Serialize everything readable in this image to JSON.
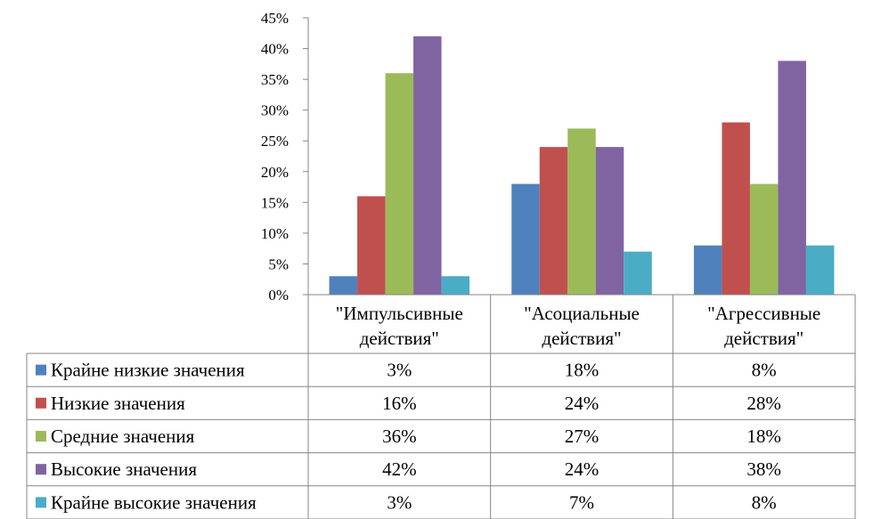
{
  "chart_data": {
    "type": "bar",
    "categories": [
      "\"Импульсивные действия\"",
      "\"Асоциальные действия\"",
      "\"Агрессивные действия\""
    ],
    "category_lines": [
      [
        "\"Импульсивные",
        "действия\""
      ],
      [
        "\"Асоциальные",
        "действия\""
      ],
      [
        "\"Агрессивные",
        "действия\""
      ]
    ],
    "series": [
      {
        "name": "Крайне низкие значения",
        "color": "#4F81BD",
        "values": [
          3,
          18,
          8
        ]
      },
      {
        "name": "Низкие значения",
        "color": "#C0504D",
        "values": [
          16,
          24,
          28
        ]
      },
      {
        "name": "Средние значения",
        "color": "#9BBB59",
        "values": [
          36,
          27,
          18
        ]
      },
      {
        "name": "Высокие значения",
        "color": "#8064A2",
        "values": [
          42,
          24,
          38
        ]
      },
      {
        "name": "Крайне высокие значения",
        "color": "#4BACC6",
        "values": [
          3,
          7,
          8
        ]
      }
    ],
    "table_values": [
      [
        "3%",
        "18%",
        "8%"
      ],
      [
        "16%",
        "24%",
        "28%"
      ],
      [
        "36%",
        "27%",
        "18%"
      ],
      [
        "42%",
        "24%",
        "38%"
      ],
      [
        "3%",
        "7%",
        "8%"
      ]
    ],
    "yticks": [
      "0%",
      "5%",
      "10%",
      "15%",
      "20%",
      "25%",
      "30%",
      "35%",
      "40%",
      "45%"
    ],
    "ylim": [
      0,
      45
    ],
    "unit": "%",
    "grid": false,
    "legend_placement": "data-table"
  }
}
